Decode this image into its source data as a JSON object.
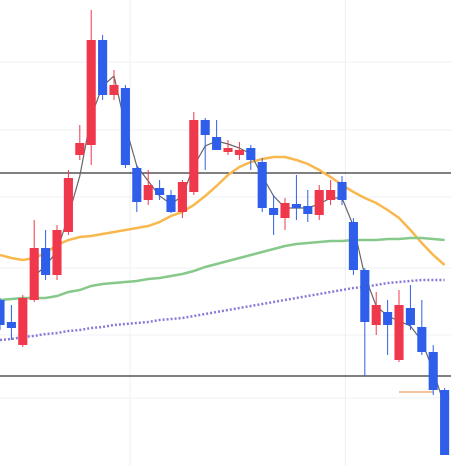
{
  "chart_data": {
    "type": "candlestick",
    "categories": [
      null,
      null,
      null,
      null,
      null,
      null,
      null,
      null,
      null,
      null,
      null,
      null,
      null,
      null,
      null,
      null,
      null,
      null,
      null,
      null,
      null,
      null,
      null,
      null,
      null,
      null,
      null,
      null,
      null,
      null,
      null,
      null,
      null,
      null,
      null,
      null,
      null,
      null,
      null,
      null
    ],
    "open": [
      166,
      144,
      121,
      166,
      218,
      191,
      234,
      311,
      321,
      426,
      371,
      378,
      298,
      266,
      278,
      271,
      254,
      274,
      346,
      329,
      314,
      311,
      318,
      304,
      258,
      248,
      262,
      260,
      251,
      266,
      284,
      244,
      196,
      141,
      154,
      106,
      158,
      139,
      114,
      76
    ],
    "high": [
      168,
      161,
      171,
      246,
      236,
      241,
      296,
      341,
      456,
      431,
      396,
      381,
      301,
      296,
      286,
      276,
      286,
      354,
      348,
      346,
      326,
      324,
      321,
      308,
      271,
      268,
      291,
      276,
      281,
      286,
      290,
      248,
      198,
      174,
      166,
      176,
      181,
      166,
      121,
      78
    ],
    "low": [
      136,
      126,
      119,
      164,
      186,
      186,
      231,
      306,
      301,
      366,
      366,
      298,
      254,
      261,
      266,
      253,
      248,
      271,
      296,
      316,
      311,
      306,
      296,
      254,
      231,
      236,
      246,
      244,
      246,
      261,
      261,
      191,
      90,
      131,
      111,
      104,
      136,
      111,
      71,
      11
    ],
    "close": [
      141,
      138,
      168,
      218,
      191,
      236,
      288,
      323,
      426,
      371,
      381,
      301,
      264,
      281,
      271,
      254,
      284,
      346,
      331,
      316,
      318,
      316,
      306,
      258,
      251,
      263,
      258,
      252,
      276,
      276,
      266,
      196,
      144,
      161,
      141,
      161,
      141,
      114,
      76,
      11
    ],
    "up_color": "#f0384c",
    "down_color": "#2f5fea",
    "series": [
      {
        "color": "#f8b84e",
        "values": [
          211,
          208,
          206,
          208,
          213,
          221,
          226,
          229,
          230,
          232,
          234,
          236,
          238,
          240,
          244,
          250,
          254,
          261,
          270,
          280,
          291,
          299,
          304,
          307,
          309,
          309,
          306,
          302,
          296,
          289,
          281,
          274,
          268,
          263,
          256,
          248,
          236,
          223,
          211,
          201
        ]
      },
      {
        "color": "#86c98a",
        "values": [
          166,
          167,
          168,
          168,
          168,
          170,
          174,
          176,
          180,
          182,
          183,
          184,
          185,
          187,
          188,
          190,
          192,
          195,
          199,
          202,
          205,
          208,
          211,
          214,
          217,
          220,
          222,
          223,
          224,
          225,
          225,
          226,
          226,
          226,
          227,
          227,
          228,
          228,
          227,
          226
        ]
      },
      {
        "color": "#8a7ad8",
        "dashed": true,
        "values": [
          126,
          127,
          129,
          130,
          132,
          133,
          135,
          136,
          138,
          139,
          141,
          142,
          143,
          144,
          146,
          147,
          148,
          150,
          152,
          154,
          156,
          158,
          160,
          162,
          164,
          166,
          168,
          170,
          172,
          174,
          176,
          178,
          179,
          181,
          183,
          184,
          185,
          186,
          186,
          186
        ]
      },
      {
        "color": "#666666",
        "values": [
          null,
          null,
          null,
          190,
          200,
          215,
          250,
          290,
          350,
          380,
          390,
          340,
          300,
          285,
          270,
          262,
          270,
          300,
          320,
          325,
          322,
          318,
          312,
          290,
          270,
          258,
          258,
          258,
          262,
          268,
          268,
          240,
          190,
          160,
          150,
          145,
          140,
          125,
          95,
          60
        ]
      }
    ],
    "levels": [
      {
        "value": 293,
        "color": "#000000"
      },
      {
        "value": 90,
        "color": "#000000"
      },
      {
        "value": 74,
        "color": "#e08a3c",
        "from": 35,
        "to": 38
      }
    ],
    "xlim": [
      0,
      39.56
    ],
    "ylim": [
      0,
      466
    ],
    "yticks": [
      404,
      336,
      269,
      198,
      131,
      68
    ],
    "xgrid": [
      11.4,
      30.3
    ],
    "grid": true
  }
}
